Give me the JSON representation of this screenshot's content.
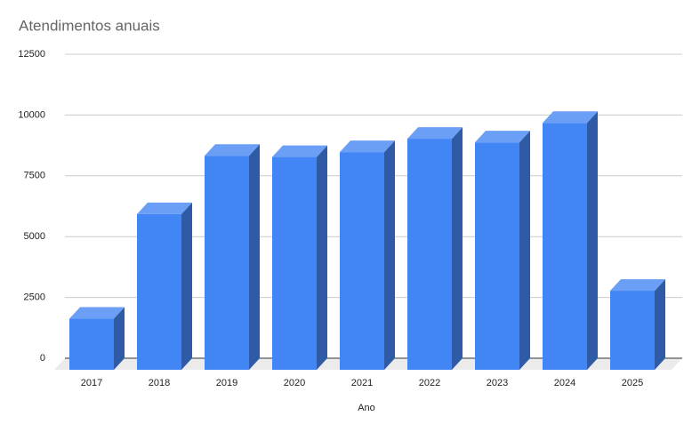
{
  "chart_data": {
    "type": "bar3d",
    "title": "Atendimentos anuais",
    "x_label": "Ano",
    "categories": [
      "2017",
      "2018",
      "2019",
      "2020",
      "2021",
      "2022",
      "2023",
      "2024",
      "2025"
    ],
    "values": [
      2100,
      6400,
      8800,
      8750,
      8950,
      9500,
      9350,
      10150,
      3250
    ],
    "color": "#4285f4",
    "ylim": [
      0,
      12500
    ],
    "yticks": [
      0,
      2500,
      5000,
      7500,
      10000,
      12500
    ],
    "grid": true
  }
}
